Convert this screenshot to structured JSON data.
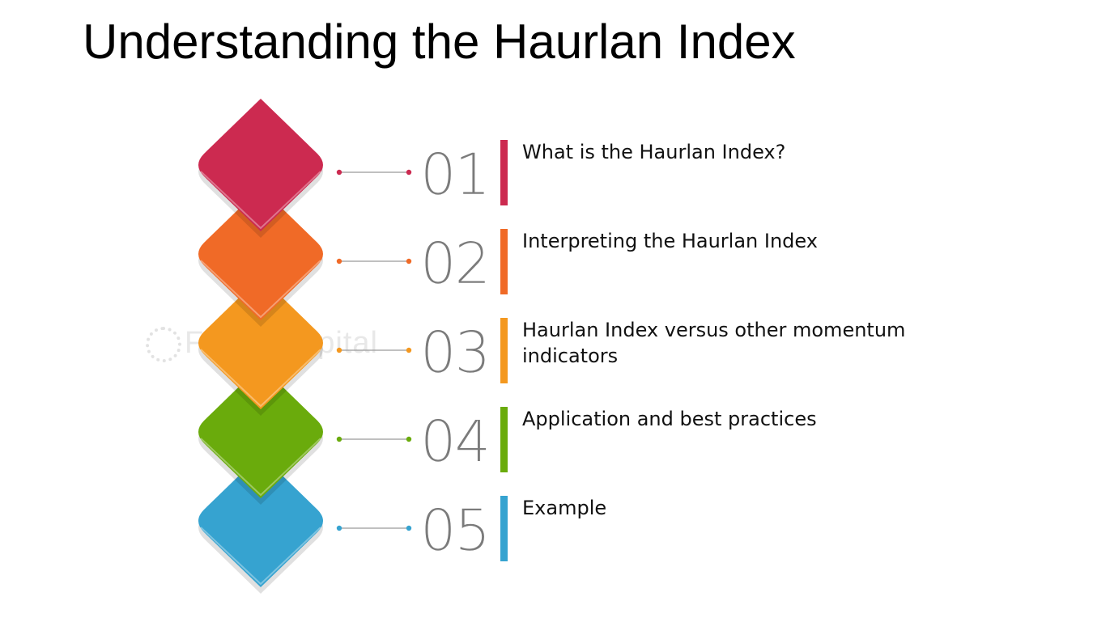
{
  "title": "Understanding the Haurlan Index",
  "watermark": "FasterCapital",
  "items": [
    {
      "number": "01",
      "label": "What is the Haurlan Index?",
      "color": "#cc2a50"
    },
    {
      "number": "02",
      "label": "Interpreting the Haurlan Index",
      "color": "#f06a27"
    },
    {
      "number": "03",
      "label": "Haurlan Index versus other momentum indicators",
      "color": "#f4981f"
    },
    {
      "number": "04",
      "label": "Application and best practices",
      "color": "#6aab0c"
    },
    {
      "number": "05",
      "label": "Example",
      "color": "#36a3d0"
    }
  ]
}
